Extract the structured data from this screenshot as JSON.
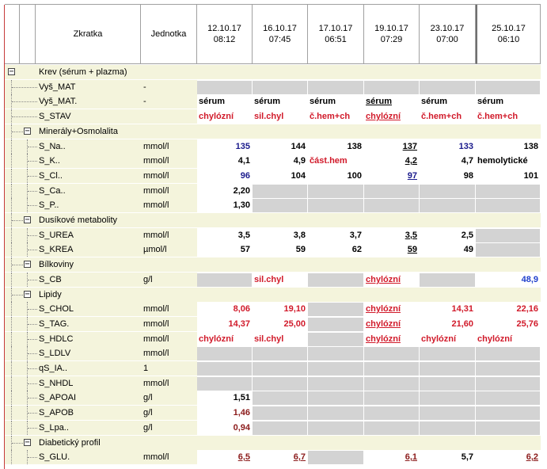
{
  "header": {
    "zkratka": "Zkratka",
    "jednotka": "Jednotka",
    "dates": [
      {
        "date": "12.10.17",
        "time": "08:12"
      },
      {
        "date": "16.10.17",
        "time": "07:45"
      },
      {
        "date": "17.10.17",
        "time": "06:51"
      },
      {
        "date": "19.10.17",
        "time": "07:29"
      },
      {
        "date": "23.10.17",
        "time": "07:00"
      },
      {
        "date": "25.10.17",
        "time": "06:10"
      }
    ]
  },
  "rows": [
    {
      "level": 0,
      "group": true,
      "name": "Krev (sérum + plazma)",
      "unit": "",
      "cells": []
    },
    {
      "level": 1,
      "name": "Vyš_MAT",
      "unit": "-",
      "cells": [
        {
          "e": 1
        },
        {
          "e": 1
        },
        {
          "e": 1
        },
        {
          "e": 1
        },
        {
          "e": 1
        },
        {
          "e": 1
        }
      ]
    },
    {
      "level": 1,
      "name": "Vyš_MAT.",
      "unit": "-",
      "cells": [
        {
          "v": "sérum",
          "c": "black",
          "t": 1
        },
        {
          "v": "sérum",
          "c": "black",
          "t": 1
        },
        {
          "v": "sérum",
          "c": "black",
          "t": 1
        },
        {
          "v": "sérum",
          "c": "black",
          "t": 1,
          "u": 1
        },
        {
          "v": "sérum",
          "c": "black",
          "t": 1
        },
        {
          "v": "sérum",
          "c": "black",
          "t": 1
        }
      ]
    },
    {
      "level": 1,
      "name": "S_STAV",
      "unit": "",
      "cells": [
        {
          "v": "chylózní",
          "c": "red",
          "t": 1
        },
        {
          "v": "sil.chyl",
          "c": "red",
          "t": 1
        },
        {
          "v": "č.hem+ch",
          "c": "red",
          "t": 1
        },
        {
          "v": "chylózní",
          "c": "red",
          "t": 1,
          "u": 1
        },
        {
          "v": "č.hem+ch",
          "c": "red",
          "t": 1
        },
        {
          "v": "č.hem+ch",
          "c": "red",
          "t": 1
        }
      ]
    },
    {
      "level": 1,
      "group": true,
      "name": "Minerály+Osmolalita",
      "unit": "",
      "cells": []
    },
    {
      "level": 2,
      "name": "S_Na..",
      "unit": "mmol/l",
      "cells": [
        {
          "v": "135",
          "c": "navy"
        },
        {
          "v": "144",
          "c": "black"
        },
        {
          "v": "138",
          "c": "black"
        },
        {
          "v": "137",
          "c": "black",
          "u": 1
        },
        {
          "v": "133",
          "c": "navy"
        },
        {
          "v": "138",
          "c": "black"
        }
      ]
    },
    {
      "level": 2,
      "name": "S_K..",
      "unit": "mmol/l",
      "cells": [
        {
          "v": "4,1",
          "c": "black"
        },
        {
          "v": "4,9",
          "c": "black"
        },
        {
          "v": "část.hem",
          "c": "red",
          "t": 1
        },
        {
          "v": "4,2",
          "c": "black",
          "u": 1
        },
        {
          "v": "4,7",
          "c": "black"
        },
        {
          "v": "hemolytické",
          "c": "black",
          "t": 1
        }
      ]
    },
    {
      "level": 2,
      "name": "S_Cl..",
      "unit": "mmol/l",
      "cells": [
        {
          "v": "96",
          "c": "navy"
        },
        {
          "v": "104",
          "c": "black"
        },
        {
          "v": "100",
          "c": "black"
        },
        {
          "v": "97",
          "c": "navy",
          "u": 1
        },
        {
          "v": "98",
          "c": "black"
        },
        {
          "v": "101",
          "c": "black"
        }
      ]
    },
    {
      "level": 2,
      "name": "S_Ca..",
      "unit": "mmol/l",
      "cells": [
        {
          "v": "2,20",
          "c": "black"
        },
        {
          "e": 1
        },
        {
          "e": 1
        },
        {
          "e": 1
        },
        {
          "e": 1
        },
        {
          "e": 1
        }
      ]
    },
    {
      "level": 2,
      "name": "S_P..",
      "unit": "mmol/l",
      "cells": [
        {
          "v": "1,30",
          "c": "black"
        },
        {
          "e": 1
        },
        {
          "e": 1
        },
        {
          "e": 1
        },
        {
          "e": 1
        },
        {
          "e": 1
        }
      ]
    },
    {
      "level": 1,
      "group": true,
      "name": "Dusíkové metabolity",
      "unit": "",
      "cells": []
    },
    {
      "level": 2,
      "name": "S_UREA",
      "unit": "mmol/l",
      "cells": [
        {
          "v": "3,5",
          "c": "black"
        },
        {
          "v": "3,8",
          "c": "black"
        },
        {
          "v": "3,7",
          "c": "black"
        },
        {
          "v": "3,5",
          "c": "black",
          "u": 1
        },
        {
          "v": "2,5",
          "c": "black"
        },
        {
          "e": 1
        }
      ]
    },
    {
      "level": 2,
      "name": "S_KREA",
      "unit": "µmol/l",
      "cells": [
        {
          "v": "57",
          "c": "black"
        },
        {
          "v": "59",
          "c": "black"
        },
        {
          "v": "62",
          "c": "black"
        },
        {
          "v": "59",
          "c": "black",
          "u": 1
        },
        {
          "v": "49",
          "c": "black"
        },
        {
          "e": 1
        }
      ]
    },
    {
      "level": 1,
      "group": true,
      "name": "Bílkoviny",
      "unit": "",
      "cells": []
    },
    {
      "level": 2,
      "name": "S_CB",
      "unit": "g/l",
      "cells": [
        {
          "e": 1
        },
        {
          "v": "sil.chyl",
          "c": "red",
          "t": 1
        },
        {
          "e": 1
        },
        {
          "v": "chylózní",
          "c": "red",
          "t": 1,
          "u": 1
        },
        {
          "e": 1
        },
        {
          "v": "48,9",
          "c": "blue"
        }
      ]
    },
    {
      "level": 1,
      "group": true,
      "name": "Lipidy",
      "unit": "",
      "cells": []
    },
    {
      "level": 2,
      "name": "S_CHOL",
      "unit": "mmol/l",
      "cells": [
        {
          "v": "8,06",
          "c": "red"
        },
        {
          "v": "19,10",
          "c": "red"
        },
        {
          "e": 1
        },
        {
          "v": "chylózní",
          "c": "red",
          "t": 1,
          "u": 1
        },
        {
          "v": "14,31",
          "c": "red"
        },
        {
          "v": "22,16",
          "c": "red"
        }
      ]
    },
    {
      "level": 2,
      "name": "S_TAG.",
      "unit": "mmol/l",
      "cells": [
        {
          "v": "14,37",
          "c": "red"
        },
        {
          "v": "25,00",
          "c": "red"
        },
        {
          "e": 1
        },
        {
          "v": "chylózní",
          "c": "red",
          "t": 1,
          "u": 1
        },
        {
          "v": "21,60",
          "c": "red"
        },
        {
          "v": "25,76",
          "c": "red"
        }
      ]
    },
    {
      "level": 2,
      "name": "S_HDLC",
      "unit": "mmol/l",
      "cells": [
        {
          "v": "chylózní",
          "c": "red",
          "t": 1
        },
        {
          "v": "sil.chyl",
          "c": "red",
          "t": 1
        },
        {
          "e": 1
        },
        {
          "v": "chylózní",
          "c": "red",
          "t": 1,
          "u": 1
        },
        {
          "v": "chylózní",
          "c": "red",
          "t": 1
        },
        {
          "v": "chylózní",
          "c": "red",
          "t": 1
        }
      ]
    },
    {
      "level": 2,
      "name": "S_LDLV",
      "unit": "mmol/l",
      "cells": [
        {
          "e": 1
        },
        {
          "e": 1
        },
        {
          "e": 1
        },
        {
          "e": 1
        },
        {
          "e": 1
        },
        {
          "e": 1
        }
      ]
    },
    {
      "level": 2,
      "name": "qS_IA..",
      "unit": "1",
      "cells": [
        {
          "e": 1
        },
        {
          "e": 1
        },
        {
          "e": 1
        },
        {
          "e": 1
        },
        {
          "e": 1
        },
        {
          "e": 1
        }
      ]
    },
    {
      "level": 2,
      "name": "S_NHDL",
      "unit": "mmol/l",
      "cells": [
        {
          "e": 1
        },
        {
          "e": 1
        },
        {
          "e": 1
        },
        {
          "e": 1
        },
        {
          "e": 1
        },
        {
          "e": 1
        }
      ]
    },
    {
      "level": 2,
      "name": "S_APOAI",
      "unit": "g/l",
      "cells": [
        {
          "v": "1,51",
          "c": "black"
        },
        {
          "e": 1
        },
        {
          "e": 1
        },
        {
          "e": 1
        },
        {
          "e": 1
        },
        {
          "e": 1
        }
      ]
    },
    {
      "level": 2,
      "name": "S_APOB",
      "unit": "g/l",
      "cells": [
        {
          "v": "1,46",
          "c": "dred"
        },
        {
          "e": 1
        },
        {
          "e": 1
        },
        {
          "e": 1
        },
        {
          "e": 1
        },
        {
          "e": 1
        }
      ]
    },
    {
      "level": 2,
      "name": "S_Lpa..",
      "unit": "g/l",
      "cells": [
        {
          "v": "0,94",
          "c": "dred"
        },
        {
          "e": 1
        },
        {
          "e": 1
        },
        {
          "e": 1
        },
        {
          "e": 1
        },
        {
          "e": 1
        }
      ]
    },
    {
      "level": 1,
      "group": true,
      "name": "Diabetický profil",
      "unit": "",
      "cells": []
    },
    {
      "level": 2,
      "name": "S_GLU.",
      "unit": "mmol/l",
      "cells": [
        {
          "v": "6,5",
          "c": "dred",
          "u": 1
        },
        {
          "v": "6,7",
          "c": "dred",
          "u": 1
        },
        {
          "e": 1
        },
        {
          "v": "6,1",
          "c": "dred",
          "u": 1
        },
        {
          "v": "5,7",
          "c": "black"
        },
        {
          "v": "6,2",
          "c": "dred",
          "u": 1
        }
      ]
    }
  ]
}
